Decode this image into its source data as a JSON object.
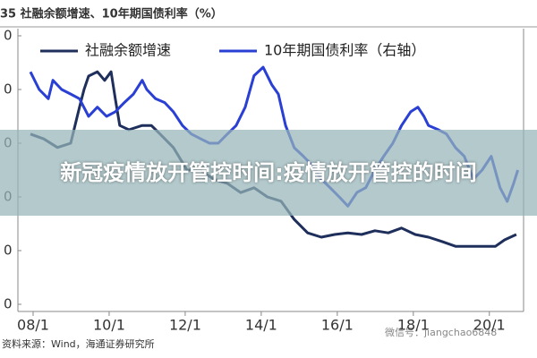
{
  "chart_data": {
    "type": "line",
    "title": "35 社融余额增速、10年期国债利率（%）",
    "xlim": [
      2007.6,
      2020.9
    ],
    "xticks": [
      {
        "value": 2008,
        "label": "08/1"
      },
      {
        "value": 2010,
        "label": "10/1"
      },
      {
        "value": 2012,
        "label": "12/1"
      },
      {
        "value": 2014,
        "label": "14/1"
      },
      {
        "value": 2016,
        "label": "16/1"
      },
      {
        "value": 2018,
        "label": "18/1"
      },
      {
        "value": 2020,
        "label": "20/1"
      }
    ],
    "ylim": [
      0,
      50
    ],
    "yticks": [
      {
        "value": 50,
        "label": "0"
      },
      {
        "value": 40,
        "label": "0"
      },
      {
        "value": 30,
        "label": "0"
      },
      {
        "value": 20,
        "label": "0"
      },
      {
        "value": 10,
        "label": "0"
      },
      {
        "value": 0,
        "label": "0"
      }
    ],
    "y2lim": [
      1.5,
      5.0
    ],
    "legend": "top",
    "series": [
      {
        "name": "社融余额增速",
        "color": "#1f2f5c",
        "x": [
          2007.93,
          2008.28,
          2008.64,
          2008.99,
          2009.22,
          2009.34,
          2009.46,
          2009.69,
          2009.88,
          2010.05,
          2010.16,
          2010.28,
          2010.52,
          2010.87,
          2011.11,
          2011.34,
          2011.69,
          2012.05,
          2012.4,
          2012.75,
          2013.11,
          2013.46,
          2013.81,
          2014.16,
          2014.52,
          2014.87,
          2015.22,
          2015.58,
          2015.93,
          2016.28,
          2016.64,
          2016.99,
          2017.34,
          2017.69,
          2018.05,
          2018.4,
          2018.75,
          2019.11,
          2019.46,
          2019.81,
          2020.16,
          2020.4,
          2020.71
        ],
        "values": [
          31.7,
          30.8,
          29.2,
          30.0,
          36.7,
          40.0,
          42.5,
          43.3,
          41.7,
          43.3,
          38.3,
          33.3,
          32.5,
          33.3,
          33.3,
          31.7,
          29.2,
          25.0,
          25.0,
          23.3,
          22.5,
          20.8,
          21.7,
          20.0,
          19.2,
          15.8,
          13.3,
          12.5,
          13.0,
          13.3,
          13.0,
          13.7,
          13.3,
          14.2,
          13.0,
          12.5,
          11.7,
          10.8,
          10.8,
          10.8,
          10.8,
          12.0,
          13.0
        ]
      },
      {
        "name": "10年期国债利率（右轴）",
        "color": "#2a3fd4",
        "axis": "y2",
        "x": [
          2007.93,
          2008.16,
          2008.4,
          2008.52,
          2008.75,
          2008.99,
          2009.22,
          2009.46,
          2009.69,
          2009.93,
          2010.16,
          2010.4,
          2010.64,
          2010.87,
          2010.99,
          2011.22,
          2011.46,
          2011.69,
          2011.93,
          2012.16,
          2012.4,
          2012.64,
          2012.87,
          2013.11,
          2013.34,
          2013.58,
          2013.81,
          2014.05,
          2014.28,
          2014.45,
          2014.64,
          2014.87,
          2015.11,
          2015.34,
          2015.58,
          2015.81,
          2016.05,
          2016.28,
          2016.52,
          2016.75,
          2016.99,
          2017.22,
          2017.46,
          2017.69,
          2017.93,
          2018.12,
          2018.28,
          2018.4,
          2018.64,
          2018.87,
          2019.11,
          2019.34,
          2019.58,
          2019.81,
          2020.05,
          2020.28,
          2020.47,
          2020.64,
          2020.75
        ],
        "values": [
          4.53,
          4.3,
          4.18,
          4.42,
          4.3,
          4.24,
          4.18,
          3.95,
          4.07,
          3.95,
          4.01,
          4.13,
          4.24,
          4.42,
          4.3,
          4.18,
          4.13,
          4.01,
          3.83,
          3.72,
          3.66,
          3.6,
          3.6,
          3.72,
          3.83,
          4.07,
          4.48,
          4.59,
          4.36,
          4.24,
          3.83,
          3.54,
          3.43,
          3.31,
          3.13,
          3.02,
          2.9,
          2.78,
          2.96,
          3.02,
          3.25,
          3.43,
          3.6,
          3.83,
          4.01,
          4.07,
          3.95,
          3.83,
          3.78,
          3.72,
          3.54,
          3.43,
          3.13,
          3.25,
          3.43,
          3.02,
          2.84,
          3.08,
          3.25
        ]
      }
    ]
  },
  "source": "资料来源：Wind，海通证券研究所",
  "watermark": "微信号：jiangchao6848",
  "banner": "新冠疫情放开管控时间:疫情放开管控的时间"
}
